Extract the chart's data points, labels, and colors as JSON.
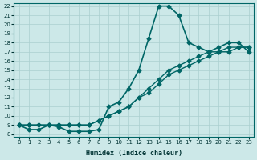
{
  "xlabel": "Humidex (Indice chaleur)",
  "ylabel": "",
  "bg_color": "#cce8e8",
  "grid_color": "#aacfcf",
  "line_color": "#006666",
  "xlim": [
    0,
    23
  ],
  "ylim": [
    8,
    22
  ],
  "yticks": [
    8,
    9,
    10,
    11,
    12,
    13,
    14,
    15,
    16,
    17,
    18,
    19,
    20,
    21,
    22
  ],
  "xticks": [
    0,
    1,
    2,
    3,
    4,
    5,
    6,
    7,
    8,
    9,
    10,
    11,
    12,
    13,
    14,
    15,
    16,
    17,
    18,
    19,
    20,
    21,
    22,
    23
  ],
  "line1_x": [
    0,
    1,
    2,
    3,
    4,
    5,
    6,
    7,
    8,
    9,
    10,
    11,
    12,
    13,
    14,
    15,
    16,
    17,
    18,
    19,
    20,
    21,
    22,
    23
  ],
  "line1_y": [
    9,
    8.5,
    8.5,
    9,
    8.8,
    8.3,
    8.3,
    8.3,
    8.5,
    11,
    11.5,
    13,
    15,
    18.5,
    22,
    22,
    21,
    18,
    17.5,
    17,
    17.5,
    18,
    18,
    17
  ],
  "line2_x": [
    0,
    1,
    2,
    3,
    4,
    5,
    6,
    7,
    8,
    9,
    10,
    11,
    12,
    13,
    14,
    15,
    16,
    17,
    18,
    19,
    20,
    21,
    22,
    23
  ],
  "line2_y": [
    9,
    9,
    9,
    9,
    9,
    9,
    9,
    9,
    9.5,
    10,
    10.5,
    11,
    12,
    13,
    14,
    15,
    15.5,
    16,
    16.5,
    17,
    17,
    17.5,
    17.5,
    17.5
  ],
  "line3_x": [
    0,
    1,
    2,
    3,
    4,
    5,
    6,
    7,
    8,
    9,
    10,
    11,
    12,
    13,
    14,
    15,
    16,
    17,
    18,
    19,
    20,
    21,
    22,
    23
  ],
  "line3_y": [
    9,
    9,
    9,
    9,
    9,
    9,
    9,
    9,
    9.5,
    10,
    10.5,
    11,
    12,
    12.5,
    13.5,
    14.5,
    15,
    15.5,
    16,
    16.5,
    17,
    17,
    17.5,
    17.5
  ]
}
